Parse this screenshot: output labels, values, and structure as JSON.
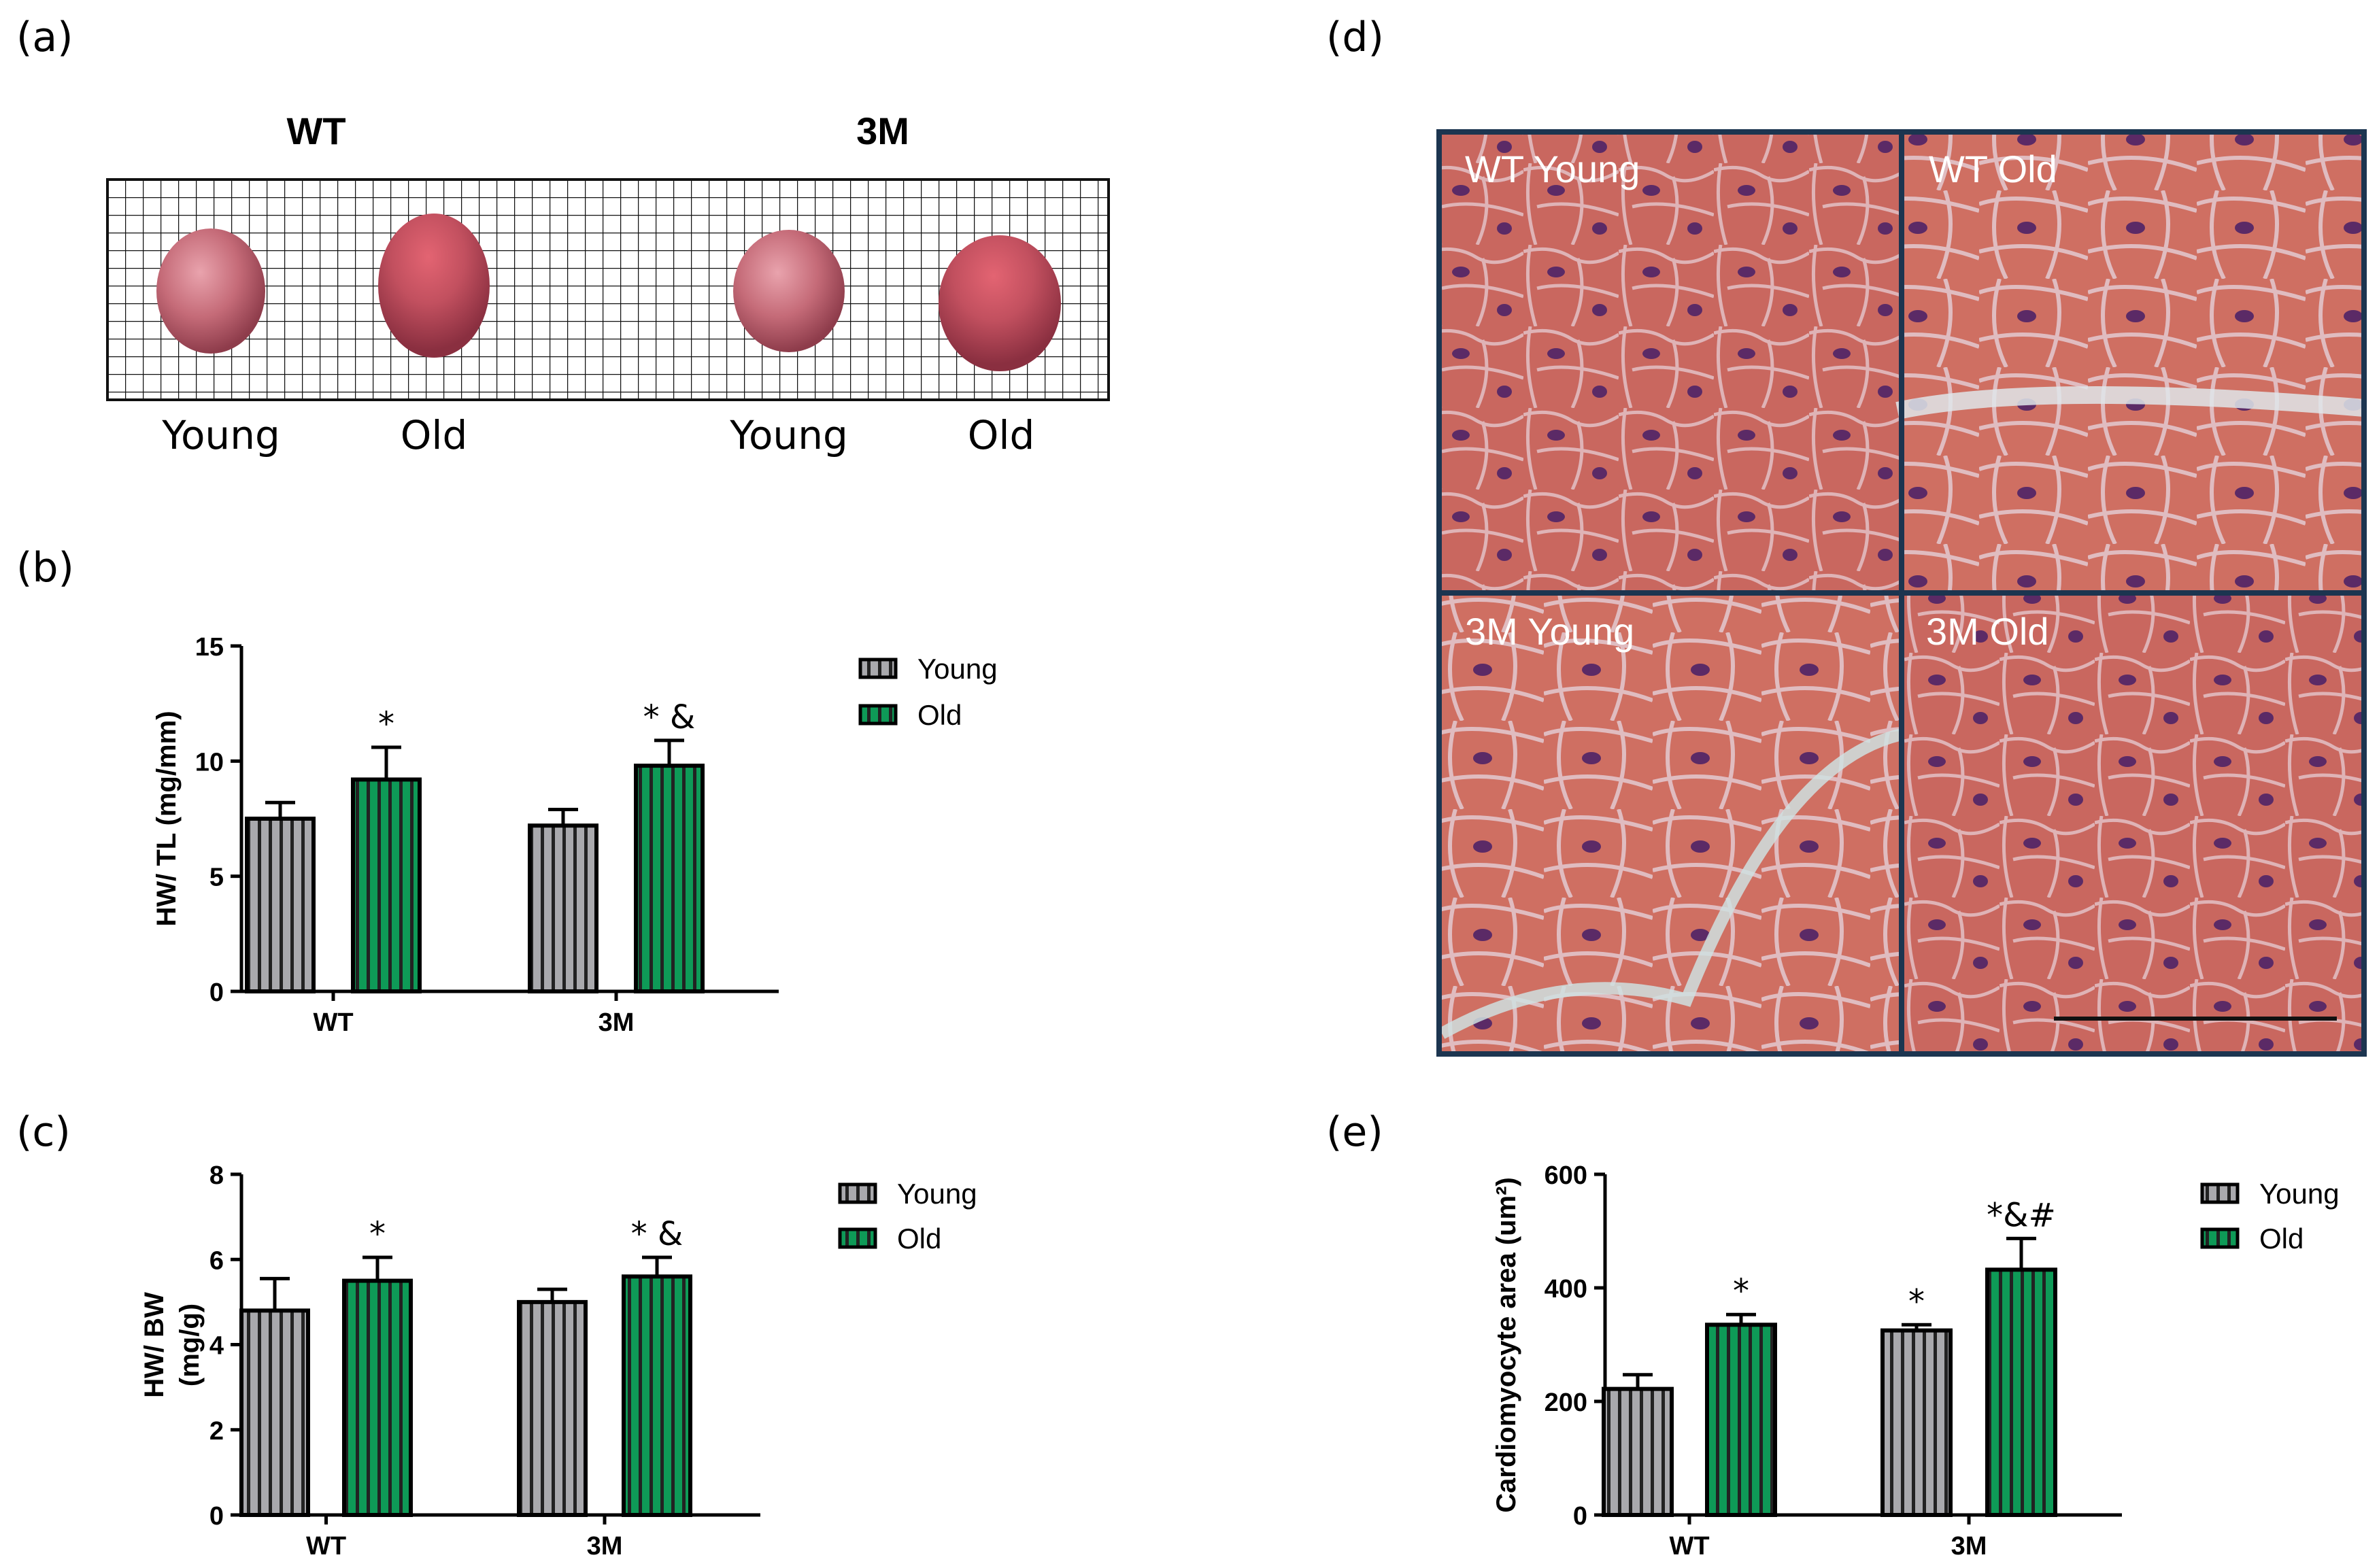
{
  "panel_labels": {
    "a": "(a)",
    "b": "(b)",
    "c": "(c)",
    "d": "(d)",
    "e": "(e)"
  },
  "panel_a": {
    "groups": [
      "WT",
      "3M"
    ],
    "hearts": [
      "Young",
      "Old",
      "Young",
      "Old"
    ]
  },
  "panel_d": {
    "quadrants": [
      "WT Young",
      "WT Old",
      "3M Young",
      "3M Old"
    ],
    "colors": {
      "tissue": "#c9675f",
      "membrane": "#dfb3b6",
      "nucleus": "#5b2a66",
      "border": "#1c3550"
    }
  },
  "colors": {
    "young": "#a9a9ad",
    "old": "#0e9a57",
    "axis": "#000000"
  },
  "chart_data": [
    {
      "id": "b",
      "type": "bar",
      "categories": [
        "WT",
        "3M"
      ],
      "series": [
        {
          "name": "Young",
          "values": [
            7.5,
            7.2
          ],
          "errors": [
            0.7,
            0.7
          ],
          "annotations": [
            "",
            ""
          ]
        },
        {
          "name": "Old",
          "values": [
            9.2,
            9.8
          ],
          "errors": [
            1.4,
            1.1
          ],
          "annotations": [
            "*",
            "* &"
          ]
        }
      ],
      "ylabel": "HW/ TL (mg/mm)",
      "ylim": [
        0,
        15
      ],
      "yticks": [
        0,
        5,
        10,
        15
      ],
      "legend": "right"
    },
    {
      "id": "c",
      "type": "bar",
      "categories": [
        "WT",
        "3M"
      ],
      "series": [
        {
          "name": "Young",
          "values": [
            4.8,
            5.0
          ],
          "errors": [
            0.75,
            0.3
          ],
          "annotations": [
            "",
            ""
          ]
        },
        {
          "name": "Old",
          "values": [
            5.5,
            5.6
          ],
          "errors": [
            0.55,
            0.45
          ],
          "annotations": [
            "*",
            "* &"
          ]
        }
      ],
      "ylabel": "HW/ BW",
      "ylabel2": "(mg/g)",
      "ylim": [
        0,
        8
      ],
      "yticks": [
        0,
        2,
        4,
        6,
        8
      ],
      "legend": "right"
    },
    {
      "id": "e",
      "type": "bar",
      "categories": [
        "WT",
        "3M"
      ],
      "series": [
        {
          "name": "Young",
          "values": [
            222,
            325
          ],
          "errors": [
            25,
            10
          ],
          "annotations": [
            "",
            "*"
          ]
        },
        {
          "name": "Old",
          "values": [
            335,
            432
          ],
          "errors": [
            18,
            55
          ],
          "annotations": [
            "*",
            "*&#"
          ]
        }
      ],
      "ylabel": "Cardiomyocyte area (um²)",
      "ylim": [
        0,
        600
      ],
      "yticks": [
        0,
        200,
        400,
        600
      ],
      "legend": "right"
    }
  ]
}
